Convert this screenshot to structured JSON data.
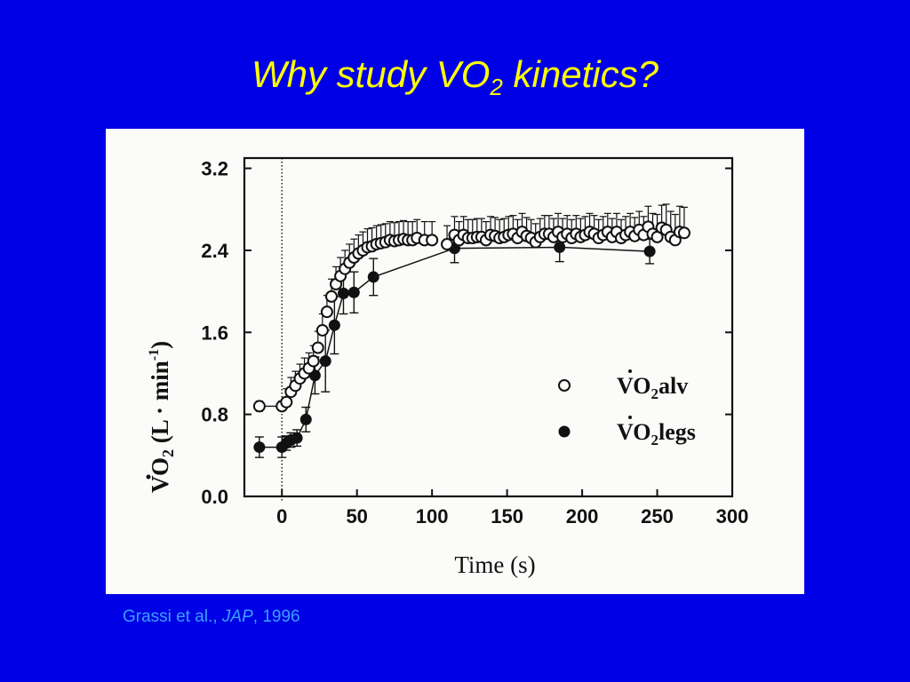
{
  "slide": {
    "title_main": "Why study VO",
    "title_sub": "2",
    "title_end": " kinetics?",
    "citation_authors": "Grassi et al., ",
    "citation_journal": "JAP",
    "citation_year": ", 1996"
  },
  "colors": {
    "background": "#0000e6",
    "title": "#ffff00",
    "citation": "#3aa0ff",
    "figure_background": "#fbfbf9",
    "ink": "#111111"
  },
  "chart_data": {
    "type": "scatter",
    "xlabel": "Time (s)",
    "ylabel_main": "VO",
    "ylabel_sub": "2",
    "ylabel_units": " (L · min",
    "ylabel_exp": "-1",
    "ylabel_close": ")",
    "xlim": [
      -25,
      300
    ],
    "ylim": [
      0,
      3.3
    ],
    "x_ticks": [
      0,
      50,
      100,
      150,
      200,
      250,
      300
    ],
    "y_ticks": [
      0.0,
      0.8,
      1.6,
      2.4,
      3.2
    ],
    "x_tick_labels": [
      "0",
      "50",
      "100",
      "150",
      "200",
      "250",
      "300"
    ],
    "y_tick_labels": [
      "0.0",
      "0.8",
      "1.6",
      "2.4",
      "3.2"
    ],
    "annotation_vertical_line_x": 0,
    "legend_position": "right",
    "series": [
      {
        "name_main": "VO",
        "name_sub": "2",
        "name_suffix": "alv",
        "marker": "open-circle",
        "error_bars": "upper",
        "x": [
          -15,
          0,
          3,
          6,
          9,
          12,
          15,
          18,
          21,
          24,
          27,
          30,
          33,
          36,
          39,
          42,
          45,
          48,
          51,
          54,
          57,
          60,
          63,
          66,
          69,
          72,
          75,
          78,
          81,
          84,
          87,
          90,
          95,
          100,
          110,
          115,
          118,
          121,
          124,
          127,
          130,
          133,
          136,
          139,
          142,
          145,
          148,
          151,
          154,
          157,
          160,
          163,
          166,
          169,
          172,
          175,
          178,
          181,
          184,
          187,
          190,
          193,
          196,
          199,
          202,
          205,
          208,
          211,
          214,
          217,
          220,
          223,
          226,
          229,
          232,
          235,
          238,
          241,
          244,
          247,
          250,
          253,
          256,
          259,
          262,
          265,
          268
        ],
        "y": [
          0.88,
          0.88,
          0.92,
          1.02,
          1.08,
          1.15,
          1.2,
          1.25,
          1.32,
          1.45,
          1.62,
          1.8,
          1.95,
          2.07,
          2.15,
          2.22,
          2.28,
          2.33,
          2.37,
          2.4,
          2.43,
          2.44,
          2.46,
          2.47,
          2.48,
          2.5,
          2.49,
          2.5,
          2.51,
          2.5,
          2.5,
          2.52,
          2.5,
          2.5,
          2.46,
          2.55,
          2.5,
          2.55,
          2.52,
          2.52,
          2.53,
          2.53,
          2.5,
          2.55,
          2.54,
          2.52,
          2.53,
          2.55,
          2.56,
          2.52,
          2.58,
          2.54,
          2.52,
          2.48,
          2.53,
          2.56,
          2.56,
          2.53,
          2.58,
          2.53,
          2.56,
          2.52,
          2.56,
          2.53,
          2.55,
          2.58,
          2.56,
          2.52,
          2.55,
          2.58,
          2.53,
          2.58,
          2.52,
          2.55,
          2.58,
          2.54,
          2.6,
          2.55,
          2.63,
          2.56,
          2.53,
          2.62,
          2.6,
          2.53,
          2.5,
          2.58,
          2.57
        ],
        "err": [
          0.05,
          0.05,
          0.13,
          0.14,
          0.14,
          0.14,
          0.15,
          0.15,
          0.15,
          0.16,
          0.16,
          0.16,
          0.17,
          0.17,
          0.18,
          0.18,
          0.18,
          0.18,
          0.18,
          0.18,
          0.18,
          0.18,
          0.18,
          0.18,
          0.18,
          0.18,
          0.18,
          0.18,
          0.18,
          0.18,
          0.18,
          0.18,
          0.18,
          0.18,
          0.18,
          0.18,
          0.18,
          0.18,
          0.18,
          0.18,
          0.18,
          0.18,
          0.18,
          0.18,
          0.18,
          0.18,
          0.18,
          0.18,
          0.18,
          0.18,
          0.18,
          0.18,
          0.18,
          0.18,
          0.18,
          0.18,
          0.18,
          0.18,
          0.18,
          0.18,
          0.18,
          0.18,
          0.18,
          0.18,
          0.18,
          0.18,
          0.18,
          0.18,
          0.18,
          0.18,
          0.18,
          0.18,
          0.18,
          0.18,
          0.18,
          0.18,
          0.18,
          0.18,
          0.2,
          0.2,
          0.22,
          0.22,
          0.25,
          0.25,
          0.25,
          0.25,
          0.25
        ]
      },
      {
        "name_main": "VO",
        "name_sub": "2",
        "name_suffix": "legs",
        "marker": "filled-circle",
        "error_bars": "both",
        "connect_line": true,
        "x": [
          -15,
          0,
          3,
          6,
          10,
          16,
          22,
          29,
          35,
          41,
          48,
          61,
          115,
          185,
          245
        ],
        "y": [
          0.48,
          0.48,
          0.52,
          0.55,
          0.57,
          0.75,
          1.18,
          1.32,
          1.67,
          1.98,
          1.99,
          2.14,
          2.42,
          2.43,
          2.39
        ],
        "err": [
          0.1,
          0.1,
          0.07,
          0.07,
          0.08,
          0.12,
          0.18,
          0.3,
          0.28,
          0.2,
          0.2,
          0.18,
          0.14,
          0.14,
          0.12
        ]
      }
    ]
  }
}
